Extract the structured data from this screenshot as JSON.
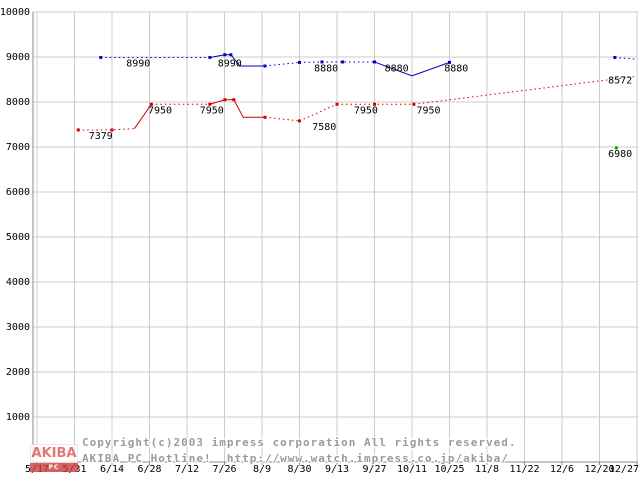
{
  "chart_data": {
    "type": "line",
    "title": "",
    "xlabel": "",
    "ylabel": "",
    "ylim": [
      0,
      10000
    ],
    "grid": true,
    "y_tick_values": [
      1000,
      2000,
      3000,
      4000,
      5000,
      6000,
      7000,
      8000,
      9000,
      10000
    ],
    "x_tick_labels": [
      "5/17",
      "5/31",
      "6/14",
      "6/28",
      "7/12",
      "7/26",
      "8/9",
      "8/30",
      "9/13",
      "9/27",
      "10/11",
      "10/25",
      "11/8",
      "11/22",
      "12/6",
      "12/20",
      "12/27"
    ],
    "series": [
      {
        "name": "blue-price-line",
        "color": "#0000bf",
        "label_color": "#000080",
        "segments": [
          {
            "dash": true,
            "points": [
              [
                1.7,
                8990
              ],
              [
                4.61,
                8990
              ]
            ]
          },
          {
            "dash": false,
            "points": [
              [
                4.61,
                8990
              ],
              [
                5.01,
                9050
              ],
              [
                5.17,
                9050
              ],
              [
                5.41,
                8800
              ],
              [
                6.08,
                8800
              ]
            ]
          },
          {
            "dash": true,
            "points": [
              [
                6.08,
                8800
              ],
              [
                7.0,
                8880
              ]
            ]
          },
          {
            "dash": true,
            "points": [
              [
                7.0,
                8880
              ],
              [
                7.6,
                8890
              ],
              [
                8.15,
                8890
              ],
              [
                9.0,
                8890
              ]
            ]
          },
          {
            "dash": false,
            "points": [
              [
                9.0,
                8890
              ],
              [
                10.0,
                8580
              ],
              [
                11.0,
                8880
              ]
            ]
          },
          {
            "dash": true,
            "points": [
              [
                15.41,
                8990
              ],
              [
                15.95,
                8950
              ]
            ]
          }
        ],
        "markers": [
          [
            1.7,
            8990
          ],
          [
            4.61,
            8990
          ],
          [
            5.01,
            9050
          ],
          [
            5.17,
            9050
          ],
          [
            6.08,
            8800
          ],
          [
            7.0,
            8880
          ],
          [
            7.6,
            8890
          ],
          [
            8.15,
            8890
          ],
          [
            9.0,
            8890
          ],
          [
            11.0,
            8880
          ],
          [
            15.41,
            8990
          ]
        ],
        "value_labels": [
          {
            "x": 2.7,
            "v": 8990,
            "dy": 9,
            "text": "8990"
          },
          {
            "x": 5.14,
            "v": 8990,
            "dy": 9,
            "text": "8990"
          },
          {
            "x": 7.71,
            "v": 8880,
            "dy": 9,
            "text": "8880"
          },
          {
            "x": 9.59,
            "v": 8880,
            "dy": 9,
            "text": "8880"
          },
          {
            "x": 11.18,
            "v": 8880,
            "dy": 9,
            "text": "8880"
          }
        ]
      },
      {
        "name": "red-price-line",
        "color": "#cf0000",
        "label_color": "#880000",
        "segments": [
          {
            "dash": true,
            "points": [
              [
                1.1,
                7379
              ],
              [
                2.0,
                7379
              ],
              [
                2.6,
                7410
              ]
            ]
          },
          {
            "dash": false,
            "points": [
              [
                2.6,
                7410
              ],
              [
                3.05,
                7950
              ]
            ]
          },
          {
            "dash": true,
            "points": [
              [
                3.05,
                7950
              ],
              [
                4.61,
                7950
              ]
            ]
          },
          {
            "dash": false,
            "points": [
              [
                4.61,
                7950
              ],
              [
                5.01,
                8050
              ],
              [
                5.25,
                8050
              ],
              [
                5.5,
                7660
              ],
              [
                6.08,
                7660
              ]
            ]
          },
          {
            "dash": true,
            "points": [
              [
                6.08,
                7660
              ],
              [
                7.0,
                7580
              ]
            ]
          },
          {
            "dash": true,
            "points": [
              [
                7.0,
                7580
              ],
              [
                8.0,
                7950
              ]
            ]
          },
          {
            "dash": true,
            "points": [
              [
                8.0,
                7950
              ],
              [
                9.0,
                7950
              ],
              [
                10.05,
                7950
              ]
            ]
          },
          {
            "dash": true,
            "points": [
              [
                10.05,
                7950
              ],
              [
                16.0,
                8572
              ]
            ]
          }
        ],
        "markers": [
          [
            1.1,
            7379
          ],
          [
            2.0,
            7379
          ],
          [
            3.05,
            7950
          ],
          [
            4.61,
            7950
          ],
          [
            5.01,
            8050
          ],
          [
            5.25,
            8050
          ],
          [
            6.08,
            7660
          ],
          [
            7.0,
            7580
          ],
          [
            8.0,
            7950
          ],
          [
            9.0,
            7950
          ],
          [
            10.05,
            7950
          ]
        ],
        "value_labels": [
          {
            "x": 1.7,
            "v": 7379,
            "dy": 9,
            "text": "7379"
          },
          {
            "x": 3.28,
            "v": 7950,
            "dy": 9,
            "text": "7950"
          },
          {
            "x": 4.66,
            "v": 7950,
            "dy": 9,
            "text": "7950"
          },
          {
            "x": 7.66,
            "v": 7580,
            "dy": 9,
            "text": "7580"
          },
          {
            "x": 8.77,
            "v": 7950,
            "dy": 9,
            "text": "7950"
          },
          {
            "x": 10.44,
            "v": 7950,
            "dy": 9,
            "text": "7950"
          },
          {
            "x": 15.55,
            "v": 8572,
            "dy": 7,
            "text": "8572"
          }
        ]
      },
      {
        "name": "green-price-point",
        "color": "#00aa00",
        "label_color": "#008800",
        "segments": [],
        "markers": [
          [
            15.45,
            6980
          ]
        ],
        "value_labels": [
          {
            "x": 15.55,
            "v": 6980,
            "dy": 9,
            "text": "6980"
          }
        ]
      }
    ]
  },
  "footer": {
    "logo": {
      "line1": "AKIBA",
      "line2": "PC Hotline!"
    },
    "copyright": "Copyright(c)2003 impress corporation All rights reserved.",
    "site_line": "AKIBA PC Hotline!  http://www.watch.impress.co.jp/akiba/"
  }
}
